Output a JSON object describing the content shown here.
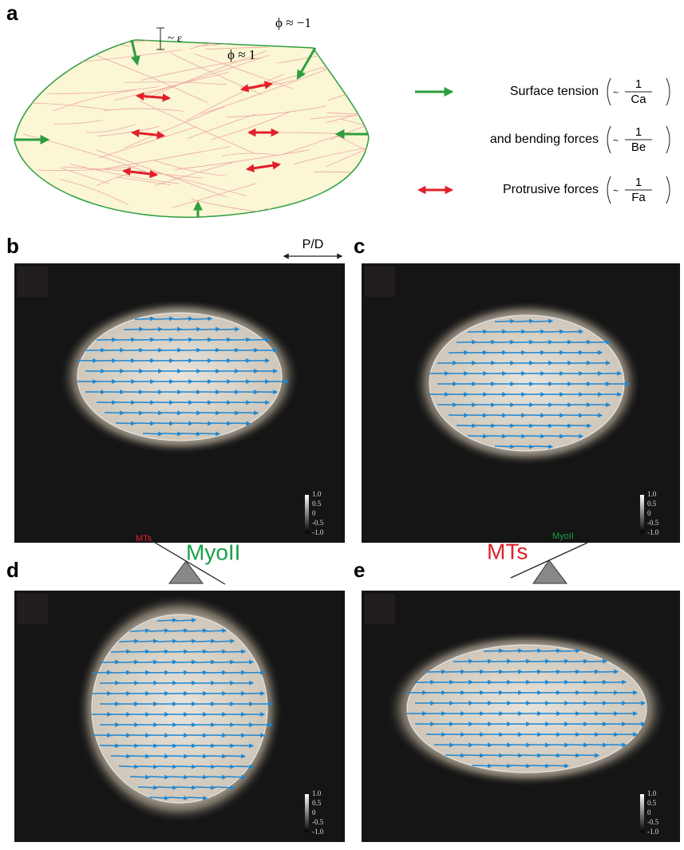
{
  "panel_labels": [
    "a",
    "b",
    "c",
    "d",
    "e"
  ],
  "schematic": {
    "thickness": "~ ε",
    "phi_outside": "ϕ ≈ −1",
    "phi_inside": "ϕ ≈ 1"
  },
  "legend": [
    {
      "label": "Surface tension",
      "prefix": "~",
      "numerator": "1",
      "denominator": "Ca"
    },
    {
      "label": "and bending forces",
      "prefix": "~",
      "numerator": "1",
      "denominator": "Be"
    },
    {
      "label": "Protrusive forces",
      "prefix": "~",
      "numerator": "1",
      "denominator": "Fa"
    }
  ],
  "axis_label": "P/D",
  "colorbar_ticks": [
    "1.0",
    "0.5",
    "0",
    "-0.5",
    "-1.0"
  ],
  "balance_d": {
    "light": "MTs",
    "heavy": "MyoII"
  },
  "balance_e": {
    "heavy": "MTs",
    "light": "MyoII"
  }
}
